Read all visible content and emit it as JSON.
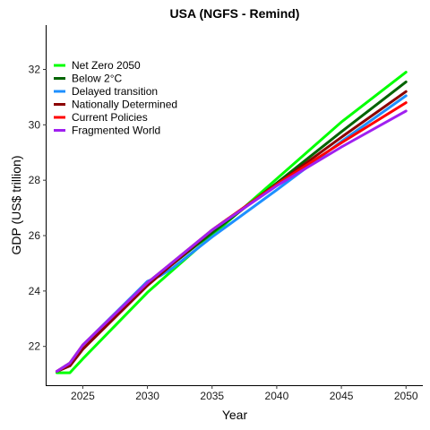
{
  "chart_data": {
    "type": "line",
    "title": "USA (NGFS - Remind)",
    "xlabel": "Year",
    "ylabel": "GDP (US$ trillion)",
    "xlim": [
      2022.2,
      2051.3
    ],
    "ylim": [
      20.6,
      33.6
    ],
    "xticks": [
      2025,
      2030,
      2035,
      2040,
      2045,
      2050
    ],
    "yticks": [
      22,
      24,
      26,
      28,
      30,
      32
    ],
    "grid": false,
    "legend_position": "top-left",
    "series": [
      {
        "name": "Net Zero 2050",
        "color": "#00ff00",
        "x": [
          2023,
          2024,
          2025,
          2030,
          2035,
          2040,
          2045,
          2050
        ],
        "y": [
          21.05,
          21.05,
          21.55,
          23.95,
          26.0,
          28.05,
          30.1,
          31.9
        ]
      },
      {
        "name": "Below 2°C",
        "color": "#006400",
        "x": [
          2023,
          2024,
          2025,
          2030,
          2035,
          2040,
          2045,
          2050
        ],
        "y": [
          21.1,
          21.3,
          21.9,
          24.25,
          26.1,
          27.9,
          29.75,
          31.55
        ]
      },
      {
        "name": "Delayed transition",
        "color": "#1e90ff",
        "x": [
          2023,
          2024,
          2025,
          2030,
          2031,
          2032,
          2035,
          2040,
          2045,
          2050
        ],
        "y": [
          21.1,
          21.4,
          22.05,
          24.35,
          24.55,
          24.85,
          25.95,
          27.65,
          29.4,
          31.05
        ]
      },
      {
        "name": "Nationally Determined",
        "color": "#8b0000",
        "x": [
          2023,
          2024,
          2025,
          2030,
          2035,
          2040,
          2045,
          2050
        ],
        "y": [
          21.1,
          21.3,
          21.9,
          24.2,
          26.2,
          27.85,
          29.55,
          31.2
        ]
      },
      {
        "name": "Current Policies",
        "color": "#ff0000",
        "x": [
          2023,
          2024,
          2025,
          2030,
          2035,
          2040,
          2045,
          2050
        ],
        "y": [
          21.1,
          21.4,
          22.05,
          24.3,
          26.2,
          27.85,
          29.35,
          30.8
        ]
      },
      {
        "name": "Fragmented World",
        "color": "#a020f0",
        "x": [
          2023,
          2024,
          2025,
          2030,
          2035,
          2040,
          2045,
          2050
        ],
        "y": [
          21.1,
          21.4,
          22.05,
          24.3,
          26.2,
          27.8,
          29.2,
          30.5
        ]
      }
    ]
  }
}
